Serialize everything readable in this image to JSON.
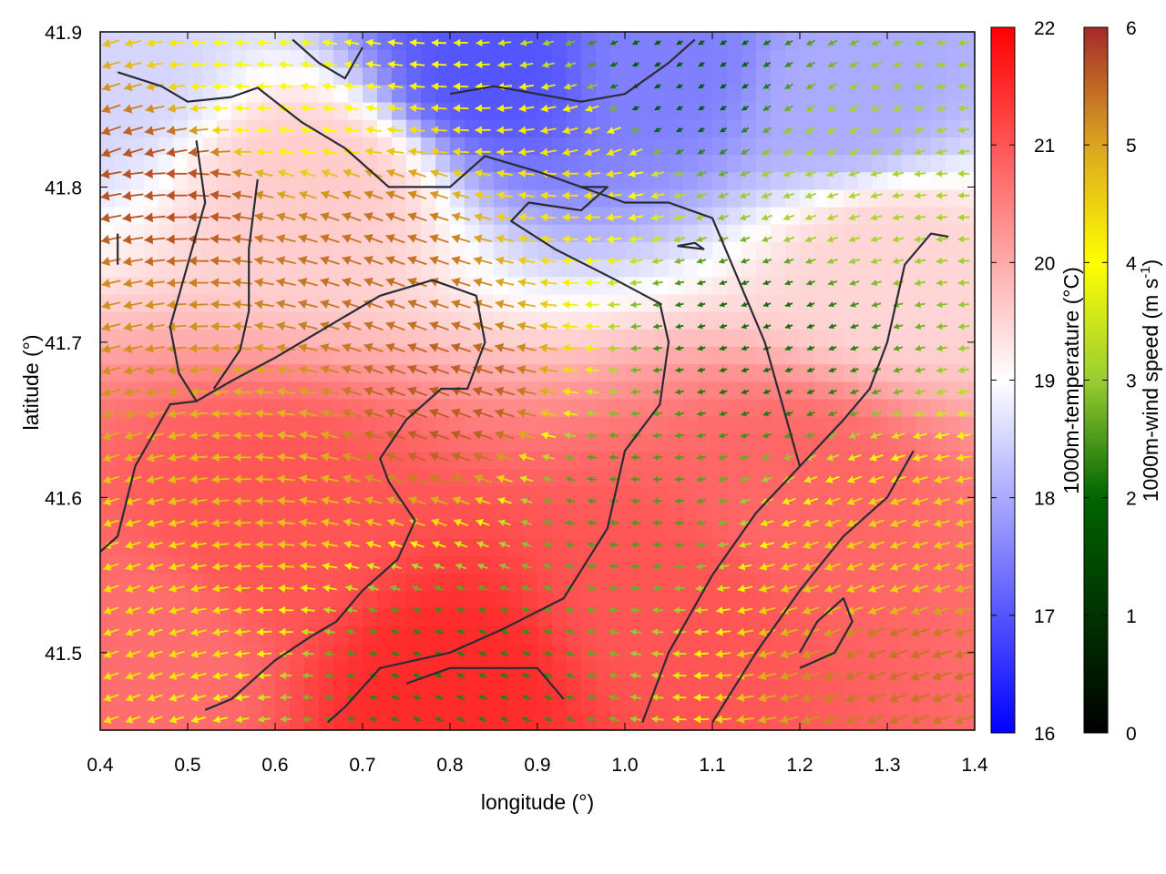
{
  "chart_data": {
    "type": "heatmap",
    "title": "",
    "xlabel": "longitude (°)",
    "ylabel": "latitude (°)",
    "xlim": [
      0.4,
      1.4
    ],
    "ylim": [
      41.45,
      41.9
    ],
    "xticks": [
      0.4,
      0.5,
      0.6,
      0.7,
      0.8,
      0.9,
      1.0,
      1.1,
      1.2,
      1.3,
      1.4
    ],
    "xtick_labels": [
      "0.4",
      "0.5",
      "0.6",
      "0.7",
      "0.8",
      "0.9",
      "1.0",
      "1.1",
      "1.2",
      "1.3",
      "1.4"
    ],
    "yticks": [
      41.5,
      41.6,
      41.7,
      41.8,
      41.9
    ],
    "ytick_labels": [
      "41.5",
      "41.6",
      "41.7",
      "41.8",
      "41.9"
    ],
    "grid": false,
    "temperature_colorbar": {
      "label": "1000m-temperature (°C)",
      "range": [
        16,
        22
      ],
      "ticks": [
        "16",
        "17",
        "18",
        "19",
        "20",
        "21",
        "22"
      ],
      "colors": [
        "#0000ff",
        "#ffffff",
        "#ff0000"
      ]
    },
    "wind_colorbar": {
      "label_main": "1000m-wind speed (m s",
      "label_sup": "-1",
      "label_end": ")",
      "range": [
        0,
        6
      ],
      "ticks": [
        "0",
        "1",
        "2",
        "3",
        "4",
        "5",
        "6"
      ],
      "colors": [
        "#000000",
        "#006400",
        "#9acd32",
        "#ffff00",
        "#daa520",
        "#a52a2a"
      ]
    },
    "temperature_regions": [
      {
        "lon": 0.85,
        "lat": 41.88,
        "temp": 17.0
      },
      {
        "lon": 1.05,
        "lat": 41.88,
        "temp": 17.5
      },
      {
        "lon": 1.25,
        "lat": 41.86,
        "temp": 18.0
      },
      {
        "lon": 0.4,
        "lat": 41.88,
        "temp": 18.5
      },
      {
        "lon": 0.65,
        "lat": 41.8,
        "temp": 19.6
      },
      {
        "lon": 0.6,
        "lat": 41.58,
        "temp": 21.0
      },
      {
        "lon": 0.8,
        "lat": 41.48,
        "temp": 21.5
      },
      {
        "lon": 1.2,
        "lat": 41.6,
        "temp": 20.8
      },
      {
        "lon": 1.05,
        "lat": 41.53,
        "temp": 21.0
      },
      {
        "lon": 1.3,
        "lat": 41.75,
        "temp": 19.5
      },
      {
        "lon": 0.45,
        "lat": 41.5,
        "temp": 20.7
      }
    ],
    "wind_regions": [
      {
        "lon": 0.48,
        "lat": 41.8,
        "speed": 5.6
      },
      {
        "lon": 0.55,
        "lat": 41.62,
        "speed": 4.5
      },
      {
        "lon": 0.72,
        "lat": 41.75,
        "speed": 5.3
      },
      {
        "lon": 0.8,
        "lat": 41.66,
        "speed": 5.5
      },
      {
        "lon": 0.6,
        "lat": 41.86,
        "speed": 3.5
      },
      {
        "lon": 0.95,
        "lat": 41.82,
        "speed": 4.0
      },
      {
        "lon": 1.0,
        "lat": 41.6,
        "speed": 1.8
      },
      {
        "lon": 1.15,
        "lat": 41.7,
        "speed": 1.3
      },
      {
        "lon": 1.25,
        "lat": 41.8,
        "speed": 2.6
      },
      {
        "lon": 1.3,
        "lat": 41.55,
        "speed": 4.2
      },
      {
        "lon": 1.32,
        "lat": 41.5,
        "speed": 5.3
      },
      {
        "lon": 0.8,
        "lat": 41.48,
        "speed": 1.5
      },
      {
        "lon": 0.45,
        "lat": 41.55,
        "speed": 4.0
      },
      {
        "lon": 1.05,
        "lat": 41.86,
        "speed": 1.0
      },
      {
        "lon": 0.42,
        "lat": 41.7,
        "speed": 5.0
      }
    ],
    "terrain_contours": [
      [
        [
          0.42,
          41.874
        ],
        [
          0.47,
          41.865
        ],
        [
          0.5,
          41.855
        ],
        [
          0.55,
          41.858
        ],
        [
          0.58,
          41.864
        ],
        [
          0.63,
          41.842
        ],
        [
          0.68,
          41.825
        ],
        [
          0.73,
          41.8
        ],
        [
          0.8,
          41.8
        ],
        [
          0.84,
          41.82
        ],
        [
          0.9,
          41.81
        ],
        [
          0.95,
          41.8
        ],
        [
          0.98,
          41.8
        ],
        [
          0.95,
          41.785
        ],
        [
          0.89,
          41.79
        ],
        [
          0.87,
          41.778
        ],
        [
          0.92,
          41.76
        ],
        [
          0.99,
          41.74
        ],
        [
          1.04,
          41.725
        ],
        [
          1.05,
          41.7
        ],
        [
          1.04,
          41.66
        ],
        [
          1.0,
          41.63
        ],
        [
          0.98,
          41.58
        ],
        [
          0.93,
          41.535
        ],
        [
          0.86,
          41.515
        ],
        [
          0.8,
          41.5
        ],
        [
          0.72,
          41.49
        ],
        [
          0.68,
          41.465
        ],
        [
          0.66,
          41.455
        ]
      ],
      [
        [
          0.52,
          41.463
        ],
        [
          0.55,
          41.47
        ],
        [
          0.6,
          41.495
        ],
        [
          0.64,
          41.51
        ],
        [
          0.67,
          41.52
        ],
        [
          0.7,
          41.54
        ],
        [
          0.74,
          41.56
        ],
        [
          0.76,
          41.585
        ],
        [
          0.73,
          41.61
        ],
        [
          0.72,
          41.625
        ],
        [
          0.75,
          41.65
        ],
        [
          0.79,
          41.67
        ],
        [
          0.82,
          41.67
        ],
        [
          0.84,
          41.7
        ],
        [
          0.83,
          41.73
        ],
        [
          0.78,
          41.74
        ],
        [
          0.72,
          41.73
        ],
        [
          0.66,
          41.71
        ],
        [
          0.6,
          41.69
        ],
        [
          0.55,
          41.675
        ],
        [
          0.51,
          41.662
        ],
        [
          0.48,
          41.66
        ],
        [
          0.44,
          41.62
        ],
        [
          0.42,
          41.575
        ],
        [
          0.4,
          41.565
        ]
      ],
      [
        [
          0.51,
          41.662
        ],
        [
          0.49,
          41.68
        ],
        [
          0.48,
          41.71
        ],
        [
          0.5,
          41.75
        ],
        [
          0.52,
          41.79
        ],
        [
          0.51,
          41.83
        ]
      ],
      [
        [
          0.58,
          41.805
        ],
        [
          0.57,
          41.76
        ],
        [
          0.57,
          41.72
        ],
        [
          0.56,
          41.695
        ],
        [
          0.53,
          41.67
        ]
      ],
      [
        [
          0.75,
          41.48
        ],
        [
          0.8,
          41.49
        ],
        [
          0.85,
          41.49
        ],
        [
          0.9,
          41.49
        ],
        [
          0.93,
          41.47
        ]
      ],
      [
        [
          1.02,
          41.455
        ],
        [
          1.05,
          41.5
        ],
        [
          1.1,
          41.55
        ],
        [
          1.15,
          41.59
        ],
        [
          1.2,
          41.62
        ],
        [
          1.25,
          41.65
        ],
        [
          1.28,
          41.67
        ],
        [
          1.3,
          41.7
        ],
        [
          1.32,
          41.75
        ],
        [
          1.35,
          41.77
        ],
        [
          1.37,
          41.768
        ]
      ],
      [
        [
          1.1,
          41.455
        ],
        [
          1.15,
          41.5
        ],
        [
          1.2,
          41.54
        ],
        [
          1.25,
          41.575
        ],
        [
          1.3,
          41.6
        ],
        [
          1.33,
          41.63
        ]
      ],
      [
        [
          0.95,
          41.8
        ],
        [
          1.0,
          41.79
        ],
        [
          1.05,
          41.79
        ],
        [
          1.1,
          41.78
        ],
        [
          1.13,
          41.74
        ],
        [
          1.16,
          41.7
        ],
        [
          1.18,
          41.66
        ],
        [
          1.2,
          41.62
        ]
      ],
      [
        [
          1.2,
          41.49
        ],
        [
          1.24,
          41.5
        ],
        [
          1.26,
          41.52
        ],
        [
          1.25,
          41.535
        ],
        [
          1.22,
          41.52
        ],
        [
          1.2,
          41.5
        ]
      ],
      [
        [
          1.06,
          41.762
        ],
        [
          1.09,
          41.76
        ],
        [
          1.08,
          41.764
        ],
        [
          1.06,
          41.762
        ]
      ],
      [
        [
          0.42,
          41.75
        ],
        [
          0.42,
          41.77
        ]
      ],
      [
        [
          0.62,
          41.895
        ],
        [
          0.65,
          41.88
        ],
        [
          0.68,
          41.87
        ],
        [
          0.7,
          41.89
        ]
      ],
      [
        [
          0.8,
          41.86
        ],
        [
          0.85,
          41.865
        ],
        [
          0.9,
          41.86
        ],
        [
          0.95,
          41.855
        ],
        [
          1.0,
          41.86
        ],
        [
          1.05,
          41.88
        ],
        [
          1.08,
          41.895
        ]
      ]
    ]
  }
}
